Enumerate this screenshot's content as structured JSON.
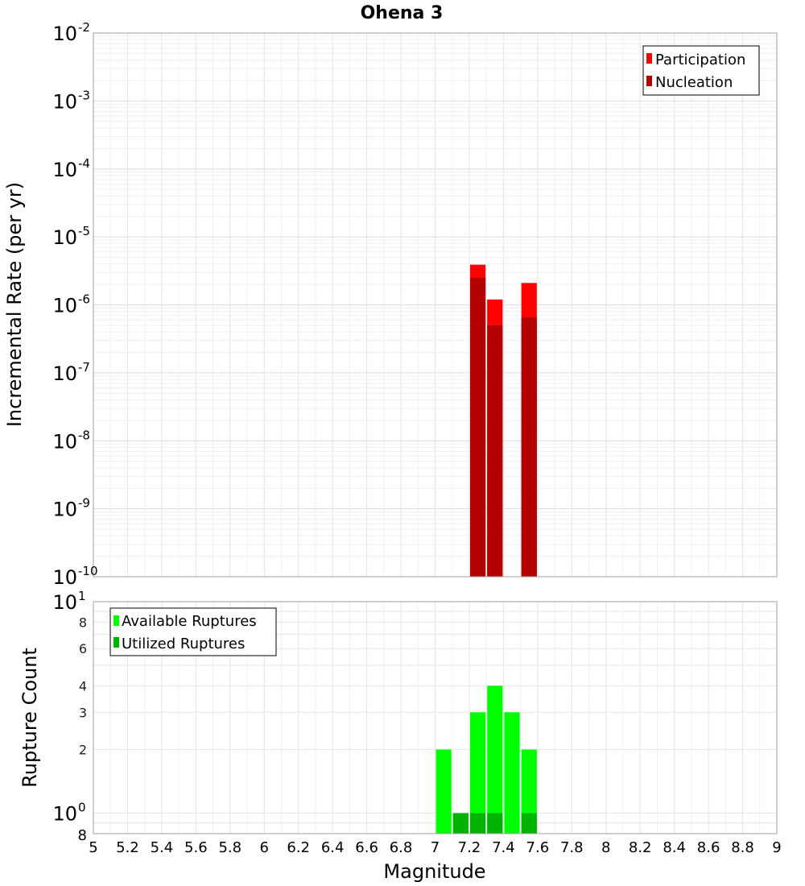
{
  "chart_data": [
    {
      "type": "bar",
      "title": "Ohena 3",
      "ylabel": "Incremental Rate (per yr)",
      "yscale": "log",
      "ylim": [
        1e-10,
        0.01
      ],
      "xlim": [
        5,
        9
      ],
      "y_tick_exponents": [
        "-10",
        "-9",
        "-8",
        "-7",
        "-6",
        "-5",
        "-4",
        "-3",
        "-2"
      ],
      "y_tick_base": "10",
      "grid": true,
      "legend_position": "top-right",
      "bin_width": 0.1,
      "series": [
        {
          "name": "Participation",
          "color": "#ff0000",
          "points": [
            {
              "x": 7.25,
              "y": 3.9e-06
            },
            {
              "x": 7.35,
              "y": 1.2e-06
            },
            {
              "x": 7.55,
              "y": 2.1e-06
            }
          ]
        },
        {
          "name": "Nucleation",
          "color": "#b30000",
          "points": [
            {
              "x": 7.25,
              "y": 2.5e-06
            },
            {
              "x": 7.35,
              "y": 5e-07
            },
            {
              "x": 7.55,
              "y": 6.5e-07
            }
          ]
        }
      ]
    },
    {
      "type": "bar",
      "ylabel": "Rupture Count",
      "xlabel": "Magnitude",
      "yscale": "log",
      "ylim": [
        0.8,
        10
      ],
      "xlim": [
        5,
        9
      ],
      "y_major_ticks": [
        {
          "value": 1,
          "base": "10",
          "exp": "0"
        },
        {
          "value": 10,
          "base": "10",
          "exp": "1"
        }
      ],
      "y_minor_ticks": [
        {
          "value": 0.8,
          "label": "8"
        },
        {
          "value": 2,
          "label": "2"
        },
        {
          "value": 3,
          "label": "3"
        },
        {
          "value": 4,
          "label": "4"
        },
        {
          "value": 6,
          "label": "6"
        },
        {
          "value": 8,
          "label": "8"
        }
      ],
      "x_ticks": [
        "5",
        "5.2",
        "5.4",
        "5.6",
        "5.8",
        "6",
        "6.2",
        "6.4",
        "6.6",
        "6.8",
        "7",
        "7.2",
        "7.4",
        "7.6",
        "7.8",
        "8",
        "8.2",
        "8.4",
        "8.6",
        "8.8",
        "9"
      ],
      "grid": true,
      "legend_position": "top-left",
      "bin_width": 0.1,
      "series": [
        {
          "name": "Available Ruptures",
          "color": "#00ff00",
          "points": [
            {
              "x": 7.05,
              "y": 2
            },
            {
              "x": 7.15,
              "y": 1
            },
            {
              "x": 7.25,
              "y": 3
            },
            {
              "x": 7.35,
              "y": 4
            },
            {
              "x": 7.45,
              "y": 3
            },
            {
              "x": 7.55,
              "y": 2
            }
          ]
        },
        {
          "name": "Utilized Ruptures",
          "color": "#00b300",
          "points": [
            {
              "x": 7.15,
              "y": 1
            },
            {
              "x": 7.25,
              "y": 1
            },
            {
              "x": 7.35,
              "y": 1
            },
            {
              "x": 7.55,
              "y": 1
            }
          ]
        }
      ]
    }
  ]
}
